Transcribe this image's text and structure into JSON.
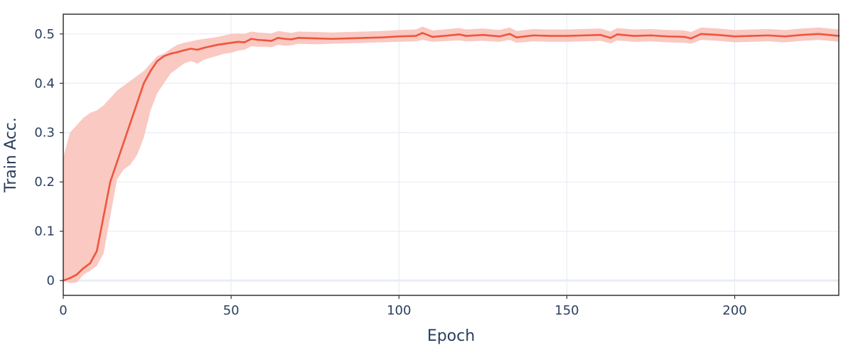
{
  "chart_data": {
    "type": "line",
    "xlabel": "Epoch",
    "ylabel": "Train Acc.",
    "xlim": [
      0,
      231
    ],
    "ylim": [
      -0.03,
      0.54
    ],
    "x_ticks": [
      0,
      50,
      100,
      150,
      200
    ],
    "y_ticks": [
      0,
      0.1,
      0.2,
      0.3,
      0.4,
      0.5
    ],
    "y_tick_labels": [
      "0",
      "0.1",
      "0.2",
      "0.3",
      "0.4",
      "0.5"
    ],
    "x_tick_labels": [
      "0",
      "50",
      "100",
      "150",
      "200"
    ],
    "grid": true,
    "legend": "none",
    "colors": {
      "line": "#ef553b",
      "band": "#f8c3bb",
      "grid": "#e8ecf4",
      "zeroline": "#e8ecf4",
      "axis": "#333333",
      "text": "#2a3f5f"
    },
    "series": [
      {
        "x": [
          0,
          2,
          4,
          6,
          8,
          10,
          12,
          14,
          16,
          18,
          20,
          22,
          24,
          26,
          28,
          30,
          32,
          34,
          36,
          38,
          40,
          42,
          44,
          46,
          48,
          50,
          52,
          54,
          56,
          58,
          60,
          62,
          64,
          66,
          68,
          70,
          75,
          80,
          85,
          90,
          95,
          100,
          105,
          107,
          110,
          115,
          118,
          120,
          125,
          130,
          133,
          135,
          140,
          145,
          150,
          155,
          160,
          163,
          165,
          170,
          175,
          180,
          185,
          187,
          190,
          195,
          200,
          205,
          210,
          215,
          220,
          225,
          231
        ],
        "y": [
          0.0,
          0.005,
          0.012,
          0.025,
          0.035,
          0.06,
          0.13,
          0.2,
          0.24,
          0.28,
          0.32,
          0.36,
          0.4,
          0.425,
          0.445,
          0.455,
          0.46,
          0.463,
          0.467,
          0.47,
          0.468,
          0.472,
          0.475,
          0.478,
          0.48,
          0.482,
          0.484,
          0.483,
          0.49,
          0.488,
          0.487,
          0.486,
          0.492,
          0.49,
          0.489,
          0.492,
          0.491,
          0.49,
          0.491,
          0.492,
          0.493,
          0.495,
          0.496,
          0.502,
          0.494,
          0.497,
          0.499,
          0.496,
          0.498,
          0.495,
          0.5,
          0.493,
          0.497,
          0.496,
          0.496,
          0.497,
          0.498,
          0.492,
          0.499,
          0.496,
          0.497,
          0.495,
          0.494,
          0.491,
          0.5,
          0.498,
          0.495,
          0.496,
          0.497,
          0.495,
          0.498,
          0.5,
          0.496
        ],
        "lower": [
          0.0,
          -0.005,
          -0.004,
          0.012,
          0.02,
          0.03,
          0.055,
          0.13,
          0.205,
          0.225,
          0.235,
          0.255,
          0.29,
          0.345,
          0.38,
          0.4,
          0.42,
          0.43,
          0.44,
          0.445,
          0.44,
          0.448,
          0.452,
          0.456,
          0.46,
          0.462,
          0.466,
          0.468,
          0.475,
          0.474,
          0.474,
          0.473,
          0.478,
          0.476,
          0.477,
          0.48,
          0.479,
          0.48,
          0.481,
          0.482,
          0.483,
          0.484,
          0.485,
          0.488,
          0.484,
          0.486,
          0.487,
          0.485,
          0.486,
          0.484,
          0.488,
          0.482,
          0.485,
          0.484,
          0.484,
          0.485,
          0.486,
          0.481,
          0.487,
          0.484,
          0.485,
          0.483,
          0.482,
          0.48,
          0.488,
          0.486,
          0.483,
          0.484,
          0.485,
          0.483,
          0.486,
          0.488,
          0.484
        ],
        "upper": [
          0.25,
          0.3,
          0.315,
          0.33,
          0.34,
          0.345,
          0.355,
          0.37,
          0.385,
          0.395,
          0.405,
          0.415,
          0.425,
          0.44,
          0.455,
          0.46,
          0.47,
          0.478,
          0.482,
          0.485,
          0.488,
          0.49,
          0.492,
          0.494,
          0.497,
          0.5,
          0.501,
          0.5,
          0.505,
          0.503,
          0.502,
          0.501,
          0.506,
          0.504,
          0.502,
          0.505,
          0.504,
          0.503,
          0.504,
          0.505,
          0.506,
          0.508,
          0.509,
          0.515,
          0.507,
          0.51,
          0.512,
          0.509,
          0.511,
          0.508,
          0.513,
          0.506,
          0.51,
          0.509,
          0.509,
          0.51,
          0.511,
          0.505,
          0.512,
          0.509,
          0.51,
          0.508,
          0.507,
          0.504,
          0.513,
          0.511,
          0.508,
          0.509,
          0.51,
          0.508,
          0.511,
          0.513,
          0.509
        ]
      }
    ]
  }
}
